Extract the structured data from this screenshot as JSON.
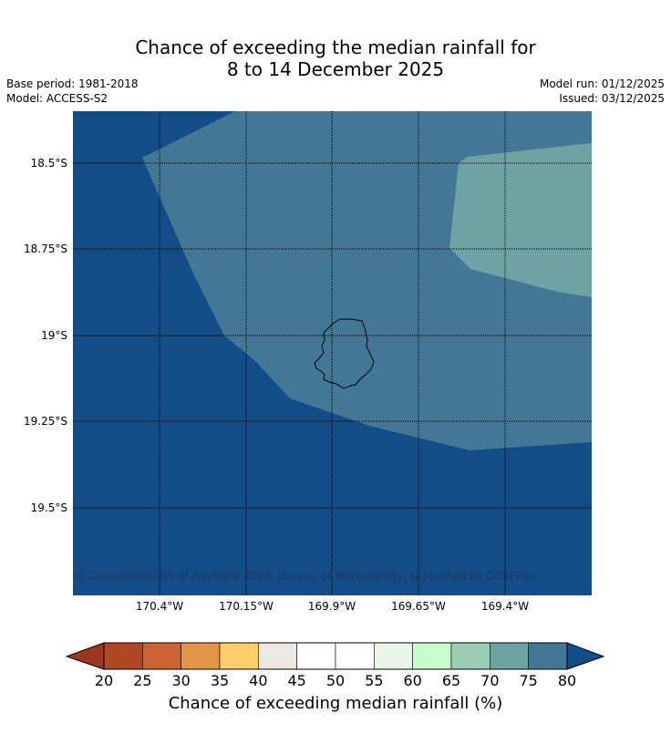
{
  "title": {
    "line1": "Chance of exceeding the median rainfall for",
    "line2": "8 to 14 December 2025"
  },
  "meta": {
    "base_period": "Base period: 1981-2018",
    "model": "Model: ACCESS-S2",
    "model_run": "Model run: 01/12/2025",
    "issued": "Issued: 03/12/2025"
  },
  "map": {
    "latitude_labels": [
      "18.5°S",
      "18.75°S",
      "19°S",
      "19.25°S",
      "19.5°S"
    ],
    "longitude_labels": [
      "170.4°W",
      "170.15°W",
      "169.9°W",
      "169.65°W",
      "169.4°W"
    ],
    "copyright": "© Commonwealth of Australia 2025, Bureau of Meteorology, supported by COSPPac",
    "regions": [
      {
        "category": "> 80%",
        "color": "#134d87"
      },
      {
        "category": "75-80%",
        "color": "#427896"
      },
      {
        "category": "70-75%",
        "color": "#6ea3a6"
      }
    ],
    "land_outline": "island-outline"
  },
  "colorbar": {
    "ticks": [
      "20",
      "25",
      "30",
      "35",
      "40",
      "45",
      "50",
      "55",
      "60",
      "65",
      "70",
      "75",
      "80"
    ],
    "under_color": "#9c3621",
    "over_color": "#134d87",
    "colors": [
      "#b04826",
      "#cd6332",
      "#e29545",
      "#fccd6b",
      "#ece8e4",
      "#ffffff",
      "#ffffff",
      "#e8f6e8",
      "#c9fbcb",
      "#9bcdb7",
      "#6ea3a6",
      "#427896"
    ],
    "label": "Chance of exceeding median rainfall (%)"
  }
}
